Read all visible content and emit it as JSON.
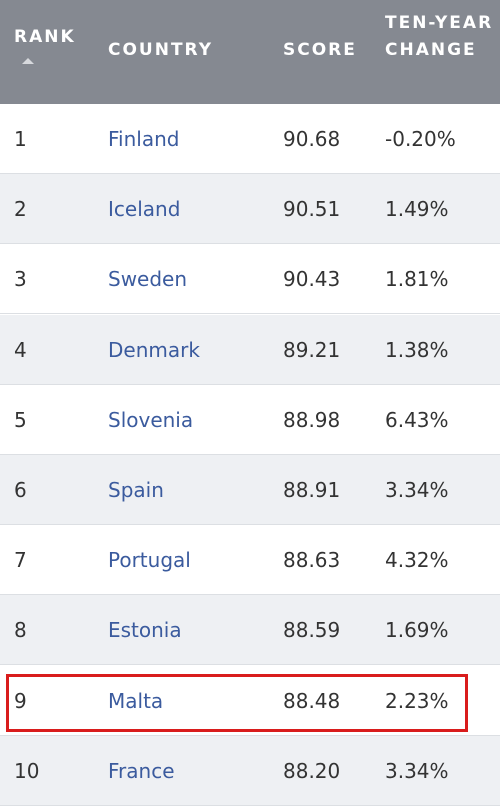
{
  "table": {
    "columns": [
      "RANK",
      "COUNTRY",
      "SCORE",
      "TEN-YEAR CHANGE"
    ],
    "rows": [
      [
        "1",
        "Finland",
        "90.68",
        "-0.20%"
      ],
      [
        "2",
        "Iceland",
        "90.51",
        "1.49%"
      ],
      [
        "3",
        "Sweden",
        "90.43",
        "1.81%"
      ],
      [
        "4",
        "Denmark",
        "89.21",
        "1.38%"
      ],
      [
        "5",
        "Slovenia",
        "88.98",
        "6.43%"
      ],
      [
        "6",
        "Spain",
        "88.91",
        "3.34%"
      ],
      [
        "7",
        "Portugal",
        "88.63",
        "4.32%"
      ],
      [
        "8",
        "Estonia",
        "88.59",
        "1.69%"
      ],
      [
        "9",
        "Malta",
        "88.48",
        "2.23%"
      ],
      [
        "10",
        "France",
        "88.20",
        "3.34%"
      ]
    ]
  }
}
